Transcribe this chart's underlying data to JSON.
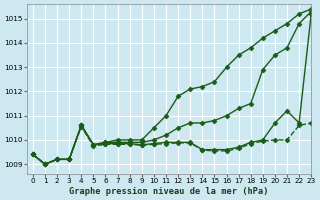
{
  "title": "Graphe pression niveau de la mer (hPa)",
  "background_color": "#cde8f0",
  "grid_color": "#ffffff",
  "line_color": "#1a5c1a",
  "xlim": [
    -0.5,
    23
  ],
  "ylim": [
    1008.6,
    1015.6
  ],
  "yticks": [
    1009,
    1010,
    1011,
    1012,
    1013,
    1014,
    1015
  ],
  "xticks": [
    0,
    1,
    2,
    3,
    4,
    5,
    6,
    7,
    8,
    9,
    10,
    11,
    12,
    13,
    14,
    15,
    16,
    17,
    18,
    19,
    20,
    21,
    22,
    23
  ],
  "series": [
    {
      "x": [
        0,
        1,
        2,
        3,
        4,
        5,
        6,
        7,
        8,
        9,
        10,
        11,
        12,
        13,
        14,
        15,
        16,
        17,
        18,
        19,
        20,
        21,
        22,
        23
      ],
      "y": [
        1009.4,
        1009.0,
        1009.2,
        1009.2,
        1010.6,
        1009.8,
        1009.9,
        1010.0,
        1010.0,
        1010.0,
        1010.5,
        1011.0,
        1011.8,
        1012.1,
        1012.2,
        1012.4,
        1013.0,
        1013.5,
        1013.8,
        1014.2,
        1014.5,
        1014.8,
        1015.2,
        1015.4
      ],
      "marker": "D",
      "markersize": 2.5,
      "linewidth": 1.0,
      "linestyle": "-"
    },
    {
      "x": [
        0,
        1,
        2,
        3,
        4,
        5,
        6,
        7,
        8,
        9,
        10,
        11,
        12,
        13,
        14,
        15,
        16,
        17,
        18,
        19,
        20,
        21,
        22,
        23
      ],
      "y": [
        1009.4,
        1009.0,
        1009.2,
        1009.2,
        1010.6,
        1009.8,
        1009.9,
        1009.9,
        1009.9,
        1009.9,
        1010.0,
        1010.2,
        1010.5,
        1010.7,
        1010.7,
        1010.8,
        1011.0,
        1011.3,
        1011.5,
        1012.9,
        1013.5,
        1013.8,
        1014.8,
        1015.3
      ],
      "marker": "D",
      "markersize": 2.5,
      "linewidth": 1.0,
      "linestyle": "-"
    },
    {
      "x": [
        0,
        1,
        2,
        3,
        4,
        5,
        6,
        7,
        8,
        9,
        10,
        11,
        12,
        13,
        14,
        15,
        16,
        17,
        18,
        19,
        20,
        21,
        22,
        23
      ],
      "y": [
        1009.4,
        1009.0,
        1009.2,
        1009.2,
        1010.6,
        1009.8,
        1009.85,
        1009.85,
        1009.85,
        1009.8,
        1009.85,
        1009.9,
        1009.9,
        1009.9,
        1009.6,
        1009.6,
        1009.6,
        1009.7,
        1009.9,
        1010.0,
        1010.7,
        1011.2,
        1010.7,
        1015.2
      ],
      "marker": "D",
      "markersize": 2.5,
      "linewidth": 1.0,
      "linestyle": "-"
    },
    {
      "x": [
        0,
        1,
        2,
        3,
        4,
        5,
        6,
        7,
        8,
        9,
        10,
        11,
        12,
        13,
        14,
        15,
        16,
        17,
        18,
        19,
        20,
        21,
        22,
        23
      ],
      "y": [
        1009.4,
        1009.0,
        1009.2,
        1009.2,
        1010.55,
        1009.75,
        1009.82,
        1009.82,
        1009.82,
        1009.78,
        1009.82,
        1009.85,
        1009.88,
        1009.88,
        1009.58,
        1009.55,
        1009.55,
        1009.65,
        1009.85,
        1009.95,
        1010.0,
        1010.0,
        1010.6,
        1010.7
      ],
      "marker": "D",
      "markersize": 2.5,
      "linewidth": 1.0,
      "linestyle": "--"
    }
  ]
}
